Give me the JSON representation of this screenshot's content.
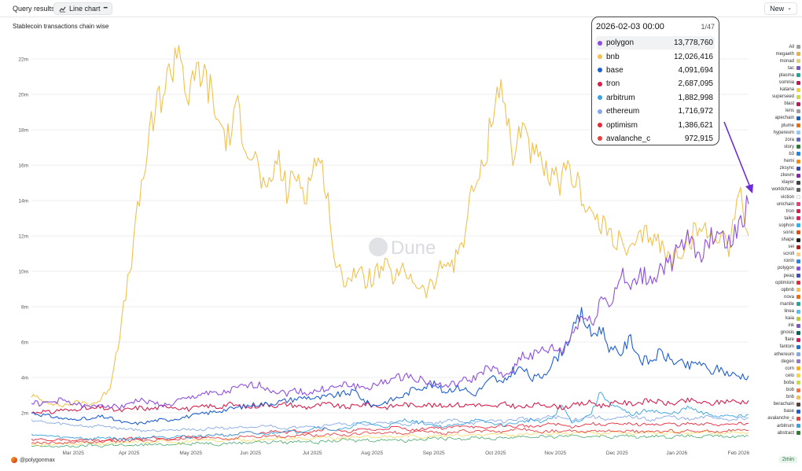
{
  "header": {
    "tab_query": "Query results",
    "tab_chart": "Line chart",
    "tab_chart_more": "•••",
    "new_button": "New"
  },
  "chart_data": {
    "type": "line",
    "title": "Stablecoin transactions chain wise",
    "xlabel": "",
    "ylabel": "",
    "ylim": [
      0,
      24000000
    ],
    "y_ticks": [
      2000000,
      4000000,
      6000000,
      8000000,
      10000000,
      12000000,
      14000000,
      16000000,
      18000000,
      20000000,
      22000000
    ],
    "y_tick_labels": [
      "2m",
      "4m",
      "6m",
      "8m",
      "10m",
      "12m",
      "14m",
      "16m",
      "18m",
      "20m",
      "22m"
    ],
    "x_tick_labels": [
      "Mar 2025",
      "Apr 2025",
      "May 2025",
      "Jun 2025",
      "Jul 2025",
      "Aug 2025",
      "Sep 2025",
      "Oct 2025",
      "Nov 2025",
      "Dec 2025",
      "Jan 2026",
      "Feb 2026"
    ],
    "x_start": "2025-02-08",
    "x_end": "2026-02-03",
    "x_tick_days": [
      21,
      49,
      80,
      110,
      141,
      171,
      202,
      233,
      263,
      294,
      324,
      355
    ],
    "x_total_days": 360,
    "watermark": "Dune",
    "series": [
      {
        "name": "bnb",
        "color": "#f2c14e",
        "width": 1.1,
        "values": [
          3.0,
          2.7,
          2.6,
          2.4,
          2.5,
          2.6,
          2.5,
          2.7,
          3.5,
          6.5,
          10.0,
          14.0,
          17.5,
          19.8,
          21.0,
          23.0,
          19.5,
          21.5,
          20.5,
          18.5,
          17.5,
          19.0,
          17.2,
          16.0,
          14.0,
          16.5,
          14.5,
          15.5,
          14.5,
          16.5,
          15.0,
          10.0,
          9.6,
          10.0,
          9.5,
          9.8,
          10.2,
          9.6,
          10.0,
          9.5,
          8.8,
          9.3,
          10.5,
          10.4,
          12.0,
          14.8,
          15.6,
          19.5,
          20.5,
          16.0,
          18.8,
          16.5,
          15.8,
          15.0,
          15.2,
          15.5,
          14.5,
          13.2,
          12.5,
          12.2,
          11.5,
          11.0,
          11.8,
          12.2,
          11.5,
          10.6,
          11.2,
          11.8,
          12.5,
          12.0,
          12.2,
          11.5,
          14.6,
          12.0
        ],
        "tooltip": "12,026,416"
      },
      {
        "name": "polygon",
        "color": "#8e4fe0",
        "width": 1.1,
        "values": [
          2.6,
          2.5,
          2.6,
          2.7,
          2.6,
          2.4,
          2.3,
          2.5,
          2.4,
          2.3,
          2.6,
          2.7,
          2.6,
          2.5,
          2.4,
          2.7,
          2.8,
          3.0,
          3.2,
          3.0,
          3.2,
          3.4,
          3.5,
          3.6,
          3.4,
          3.2,
          3.1,
          3.3,
          3.1,
          3.2,
          3.4,
          3.4,
          3.6,
          3.5,
          3.4,
          3.5,
          3.8,
          3.9,
          4.1,
          4.0,
          3.8,
          3.6,
          3.5,
          3.6,
          3.8,
          3.9,
          4.4,
          4.5,
          4.0,
          4.5,
          5.3,
          5.2,
          5.5,
          5.6,
          5.5,
          6.4,
          7.5,
          7.0,
          8.5,
          8.2,
          9.8,
          8.9,
          9.8,
          9.5,
          10.1,
          10.5,
          11.2,
          11.8,
          11.0,
          11.6,
          12.5,
          11.4,
          12.6,
          13.8
        ],
        "tooltip": "13,778,760"
      },
      {
        "name": "base",
        "color": "#1f5fd1",
        "width": 1.1,
        "values": [
          2.0,
          1.9,
          1.8,
          1.7,
          1.6,
          1.7,
          1.6,
          1.8,
          1.7,
          1.5,
          1.4,
          1.4,
          1.5,
          1.6,
          1.6,
          1.7,
          1.8,
          1.9,
          2.0,
          2.1,
          2.2,
          2.3,
          2.4,
          2.5,
          2.5,
          2.6,
          2.7,
          2.8,
          2.9,
          2.8,
          2.9,
          3.0,
          3.1,
          3.2,
          2.6,
          2.4,
          2.6,
          2.8,
          3.0,
          3.4,
          3.5,
          3.6,
          3.2,
          3.4,
          3.4,
          3.0,
          3.5,
          4.0,
          3.6,
          4.4,
          4.5,
          3.9,
          4.1,
          4.8,
          5.5,
          6.5,
          7.6,
          6.4,
          6.8,
          5.5,
          5.4,
          6.2,
          5.0,
          4.9,
          5.4,
          5.0,
          4.8,
          4.6,
          4.9,
          4.3,
          4.5,
          4.2,
          4.1,
          4.1
        ],
        "tooltip": "4,091,694"
      },
      {
        "name": "tron",
        "color": "#d6204e",
        "width": 1.1,
        "values": [
          2.0,
          2.1,
          2.0,
          2.2,
          2.1,
          2.3,
          2.2,
          2.3,
          2.2,
          2.1,
          2.2,
          2.3,
          2.2,
          2.3,
          2.4,
          2.3,
          2.2,
          2.3,
          2.4,
          2.3,
          2.5,
          2.4,
          2.3,
          2.4,
          2.5,
          2.4,
          2.5,
          2.4,
          2.3,
          2.4,
          2.5,
          2.4,
          2.3,
          2.4,
          2.5,
          2.4,
          2.3,
          2.4,
          2.5,
          2.4,
          2.5,
          2.4,
          2.4,
          2.5,
          2.4,
          2.5,
          2.4,
          2.3,
          2.5,
          2.4,
          2.3,
          2.4,
          2.5,
          2.4,
          2.3,
          2.4,
          2.5,
          2.6,
          2.4,
          2.5,
          2.6,
          2.5,
          2.6,
          2.7,
          2.6,
          2.5,
          2.6,
          2.7,
          2.6,
          2.5,
          2.6,
          2.7,
          2.6,
          2.7
        ],
        "tooltip": "2,687,095"
      },
      {
        "name": "arbitrum",
        "color": "#35a4e0",
        "width": 0.9,
        "values": [
          0.8,
          0.7,
          0.7,
          0.6,
          0.6,
          0.6,
          0.5,
          0.6,
          0.6,
          0.5,
          0.5,
          0.6,
          0.6,
          0.7,
          0.6,
          0.7,
          0.6,
          0.7,
          0.7,
          0.8,
          0.7,
          0.8,
          0.9,
          0.8,
          0.8,
          0.9,
          1.0,
          0.9,
          1.0,
          1.2,
          1.1,
          1.0,
          1.1,
          1.3,
          1.5,
          1.3,
          1.2,
          1.4,
          1.6,
          1.5,
          1.4,
          1.3,
          1.2,
          1.3,
          1.4,
          1.6,
          1.5,
          1.4,
          1.3,
          1.4,
          1.5,
          1.6,
          1.5,
          1.7,
          2.4,
          1.5,
          1.6,
          2.0,
          3.2,
          2.4,
          2.2,
          1.9,
          2.0,
          2.2,
          2.0,
          1.9,
          2.1,
          2.3,
          2.0,
          1.9,
          1.8,
          1.9,
          1.8,
          1.9
        ],
        "tooltip": "1,882,998"
      },
      {
        "name": "ethereum",
        "color": "#86a8e7",
        "width": 0.9,
        "values": [
          1.6,
          1.5,
          1.4,
          1.4,
          1.3,
          1.3,
          1.2,
          1.3,
          1.2,
          1.1,
          1.1,
          1.0,
          1.0,
          1.0,
          1.1,
          1.0,
          1.1,
          1.0,
          1.1,
          1.2,
          1.1,
          1.2,
          1.1,
          1.2,
          1.3,
          1.2,
          1.1,
          1.2,
          1.3,
          1.2,
          1.3,
          1.4,
          1.3,
          1.4,
          1.3,
          1.4,
          1.5,
          1.4,
          1.3,
          1.4,
          1.5,
          1.4,
          1.5,
          1.6,
          1.5,
          1.4,
          1.5,
          1.6,
          1.5,
          1.6,
          1.7,
          1.6,
          1.7,
          1.8,
          1.7,
          1.6,
          1.7,
          1.8,
          1.7,
          1.6,
          1.7,
          1.8,
          1.7,
          1.6,
          1.7,
          1.8,
          1.7,
          1.6,
          1.7,
          1.8,
          1.7,
          1.6,
          1.7,
          1.7
        ],
        "tooltip": "1,716,972"
      },
      {
        "name": "optimism",
        "color": "#e8283b",
        "width": 0.9,
        "values": [
          0.5,
          0.5,
          0.4,
          0.5,
          0.4,
          0.5,
          0.5,
          0.4,
          0.5,
          0.5,
          0.6,
          0.5,
          0.6,
          0.6,
          0.5,
          0.6,
          0.7,
          0.6,
          0.7,
          0.8,
          0.7,
          0.8,
          0.9,
          0.8,
          0.9,
          1.0,
          0.9,
          1.0,
          0.9,
          1.0,
          1.1,
          1.0,
          0.9,
          1.0,
          1.1,
          1.0,
          1.1,
          1.2,
          1.1,
          1.0,
          1.1,
          1.2,
          1.1,
          1.2,
          1.3,
          1.2,
          1.1,
          1.2,
          1.3,
          1.2,
          1.3,
          1.2,
          1.3,
          1.4,
          1.3,
          1.2,
          1.3,
          1.4,
          1.3,
          1.4,
          1.3,
          1.4,
          1.3,
          1.4,
          1.3,
          1.4,
          1.3,
          1.4,
          1.3,
          1.4,
          1.3,
          1.4,
          1.4,
          1.4
        ],
        "tooltip": "1,386,621"
      },
      {
        "name": "avalanche_c",
        "color": "#e84142",
        "width": 0.9,
        "values": [
          0.3,
          0.3,
          0.3,
          0.3,
          0.3,
          0.4,
          0.3,
          0.4,
          0.4,
          0.4,
          0.4,
          0.5,
          0.4,
          0.5,
          0.5,
          0.5,
          0.6,
          0.5,
          0.6,
          0.6,
          0.5,
          0.6,
          0.7,
          0.6,
          0.7,
          0.7,
          0.6,
          0.7,
          0.8,
          0.7,
          0.8,
          0.8,
          0.7,
          0.8,
          0.9,
          0.8,
          0.9,
          0.9,
          0.8,
          0.9,
          1.0,
          0.9,
          0.8,
          0.9,
          1.0,
          0.9,
          1.0,
          1.0,
          0.9,
          1.0,
          1.1,
          1.0,
          0.9,
          1.0,
          0.9,
          1.0,
          0.9,
          1.0,
          0.9,
          1.0,
          0.9,
          1.0,
          0.9,
          1.0,
          0.9,
          1.0,
          0.9,
          1.0,
          0.9,
          1.0,
          0.9,
          1.0,
          1.0,
          1.0
        ],
        "tooltip": "972,915"
      },
      {
        "name": "celo",
        "color": "#f6d548",
        "width": 0.7,
        "values": [
          0.2,
          0.2,
          0.2,
          0.3,
          0.2,
          0.3,
          0.3,
          0.2,
          0.3,
          0.3,
          0.3,
          0.4,
          0.3,
          0.4,
          0.4,
          0.3,
          0.4,
          0.4,
          0.5,
          0.4,
          0.5,
          0.5,
          0.4,
          0.5,
          0.5,
          0.6,
          0.5,
          0.6,
          0.5,
          0.6,
          0.6,
          0.5,
          0.6,
          0.6,
          0.7,
          0.6,
          0.7,
          0.6,
          0.7,
          0.7,
          0.6,
          0.7,
          0.7,
          0.8,
          0.7,
          0.8,
          0.7,
          0.8,
          0.8,
          0.7,
          0.8,
          0.8,
          0.9,
          0.8,
          0.9,
          0.8,
          0.9,
          0.9,
          0.8,
          0.9,
          0.9,
          0.8,
          0.9,
          0.9,
          0.8,
          0.9,
          0.9,
          0.8,
          0.9,
          0.9,
          0.8,
          0.9,
          0.9,
          0.9
        ]
      },
      {
        "name": "sonic",
        "color": "#2e9e5b",
        "width": 0.7,
        "values": [
          0.1,
          0.1,
          0.1,
          0.1,
          0.1,
          0.1,
          0.2,
          0.1,
          0.2,
          0.2,
          0.1,
          0.2,
          0.2,
          0.2,
          0.2,
          0.3,
          0.2,
          0.3,
          0.3,
          0.2,
          0.3,
          0.3,
          0.3,
          0.4,
          0.3,
          0.4,
          0.3,
          0.4,
          0.4,
          0.3,
          0.4,
          0.4,
          0.5,
          0.4,
          0.5,
          0.4,
          0.5,
          0.5,
          0.4,
          0.5,
          0.5,
          0.6,
          0.5,
          0.6,
          0.5,
          0.6,
          0.6,
          0.5,
          0.6,
          0.6,
          0.7,
          0.6,
          0.7,
          0.6,
          0.7,
          0.7,
          0.6,
          0.7,
          0.7,
          0.6,
          0.7,
          0.7,
          0.6,
          0.7,
          0.7,
          0.6,
          0.7,
          0.7,
          0.6,
          0.7,
          0.7,
          0.6,
          0.7,
          0.7
        ]
      }
    ]
  },
  "tooltip": {
    "date": "2026-02-03 00:00",
    "page": "1/47",
    "rows": [
      {
        "name": "polygon",
        "value": "13,778,760",
        "color": "#8e4fe0"
      },
      {
        "name": "bnb",
        "value": "12,026,416",
        "color": "#f2c14e"
      },
      {
        "name": "base",
        "value": "4,091,694",
        "color": "#1f5fd1"
      },
      {
        "name": "tron",
        "value": "2,687,095",
        "color": "#d6204e"
      },
      {
        "name": "arbitrum",
        "value": "1,882,998",
        "color": "#35a4e0"
      },
      {
        "name": "ethereum",
        "value": "1,716,972",
        "color": "#86a8e7"
      },
      {
        "name": "optimism",
        "value": "1,386,621",
        "color": "#e8283b"
      },
      {
        "name": "avalanche_c",
        "value": "972,915",
        "color": "#e84142"
      }
    ]
  },
  "legend": [
    {
      "name": "All",
      "color": "#9aa0a6"
    },
    {
      "name": "megaeth",
      "color": "#e8b04a"
    },
    {
      "name": "monad",
      "color": "#e0d27a"
    },
    {
      "name": "tac",
      "color": "#7e57c2"
    },
    {
      "name": "plasma",
      "color": "#26a69a"
    },
    {
      "name": "somnia",
      "color": "#c2185b"
    },
    {
      "name": "katana",
      "color": "#f4d03f"
    },
    {
      "name": "superseed",
      "color": "#cddc39"
    },
    {
      "name": "blast",
      "color": "#c2185b"
    },
    {
      "name": "lens",
      "color": "#9e9e9e"
    },
    {
      "name": "apechain",
      "color": "#1565c0"
    },
    {
      "name": "plume",
      "color": "#ef6c00"
    },
    {
      "name": "hyperevm",
      "color": "#90caf9"
    },
    {
      "name": "zora",
      "color": "#5c6bc0"
    },
    {
      "name": "story",
      "color": "#2e7d32"
    },
    {
      "name": "b3",
      "color": "#1e88e5"
    },
    {
      "name": "hemi",
      "color": "#fb8c00"
    },
    {
      "name": "zksync",
      "color": "#3949ab"
    },
    {
      "name": "zkevm",
      "color": "#8e24aa"
    },
    {
      "name": "xlayer",
      "color": "#424242"
    },
    {
      "name": "worldchain",
      "color": "#616161"
    },
    {
      "name": "viction",
      "color": "#ffffff"
    },
    {
      "name": "unichain",
      "color": "#ec407a"
    },
    {
      "name": "tron",
      "color": "#d6204e"
    },
    {
      "name": "taiko",
      "color": "#e91e63"
    },
    {
      "name": "sophon",
      "color": "#29b6f6"
    },
    {
      "name": "sonic",
      "color": "#e65100"
    },
    {
      "name": "shape",
      "color": "#212121"
    },
    {
      "name": "sei",
      "color": "#b71c1c"
    },
    {
      "name": "scroll",
      "color": "#ffcc80"
    },
    {
      "name": "ronin",
      "color": "#1e88e5"
    },
    {
      "name": "polygon",
      "color": "#8e4fe0"
    },
    {
      "name": "peaq",
      "color": "#3f51b5"
    },
    {
      "name": "optimism",
      "color": "#e8283b"
    },
    {
      "name": "opbnb",
      "color": "#f2c14e"
    },
    {
      "name": "nova",
      "color": "#ef6c00"
    },
    {
      "name": "mantle",
      "color": "#26a69a"
    },
    {
      "name": "linea",
      "color": "#4fc3f7"
    },
    {
      "name": "kaia",
      "color": "#c0ca33"
    },
    {
      "name": "ink",
      "color": "#7e57c2"
    },
    {
      "name": "gnosis",
      "color": "#00695c"
    },
    {
      "name": "flare",
      "color": "#d81b60"
    },
    {
      "name": "fantom",
      "color": "#1976d2"
    },
    {
      "name": "ethereum",
      "color": "#86a8e7"
    },
    {
      "name": "degen",
      "color": "#9575cd"
    },
    {
      "name": "corn",
      "color": "#ffb300"
    },
    {
      "name": "celo",
      "color": "#f6d548"
    },
    {
      "name": "boba",
      "color": "#cddc39"
    },
    {
      "name": "bob",
      "color": "#ff7043"
    },
    {
      "name": "bnb",
      "color": "#f2c14e"
    },
    {
      "name": "berachain",
      "color": "#5d4037"
    },
    {
      "name": "base",
      "color": "#1f5fd1"
    },
    {
      "name": "avalanche_c",
      "color": "#e84142"
    },
    {
      "name": "arbitrum",
      "color": "#35a4e0"
    },
    {
      "name": "abstract",
      "color": "#2e7d32"
    }
  ],
  "footer": {
    "author": "@polygonmax",
    "refresh": "2min"
  },
  "annotation": {
    "arrow_color": "#6a2bd8"
  }
}
